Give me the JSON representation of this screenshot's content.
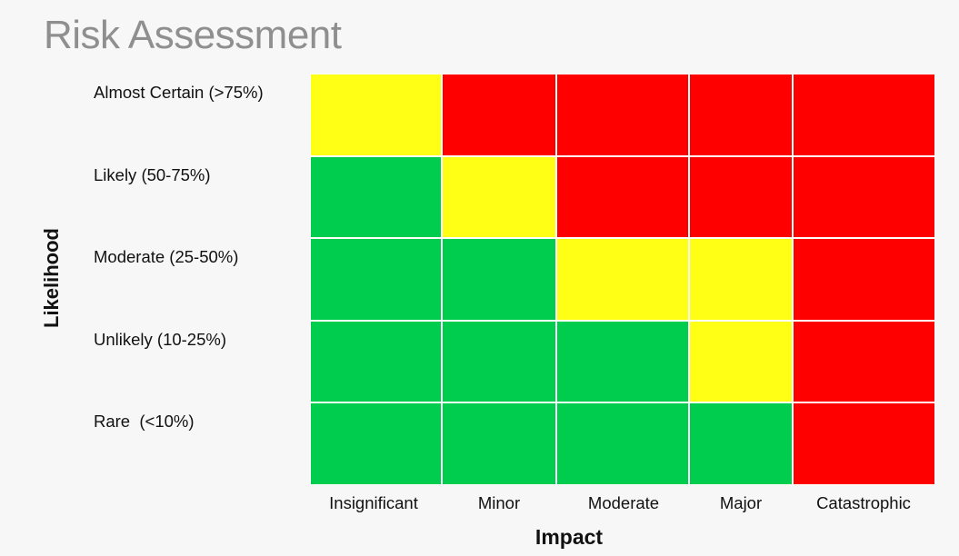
{
  "header": {
    "title": "Risk Assessment"
  },
  "chart_data": {
    "type": "heatmap",
    "title": "Risk Assessment",
    "xlabel": "Impact",
    "ylabel": "Likelihood",
    "x_categories": [
      "Insignificant",
      "Minor",
      "Moderate",
      "Major",
      "Catastrophic"
    ],
    "y_categories": [
      "Almost Certain (>75%)",
      "Likely (50-75%)",
      "Moderate (25-50%)",
      "Unlikely (10-25%)",
      "Rare  (<10%)"
    ],
    "colors": {
      "green": "#00cc4e",
      "yellow": "#ffff16",
      "red": "#ff0000"
    },
    "cells": [
      [
        "yellow",
        "red",
        "red",
        "red",
        "red"
      ],
      [
        "green",
        "yellow",
        "red",
        "red",
        "red"
      ],
      [
        "green",
        "green",
        "yellow",
        "yellow",
        "red"
      ],
      [
        "green",
        "green",
        "green",
        "yellow",
        "red"
      ],
      [
        "green",
        "green",
        "green",
        "green",
        "red"
      ]
    ]
  }
}
